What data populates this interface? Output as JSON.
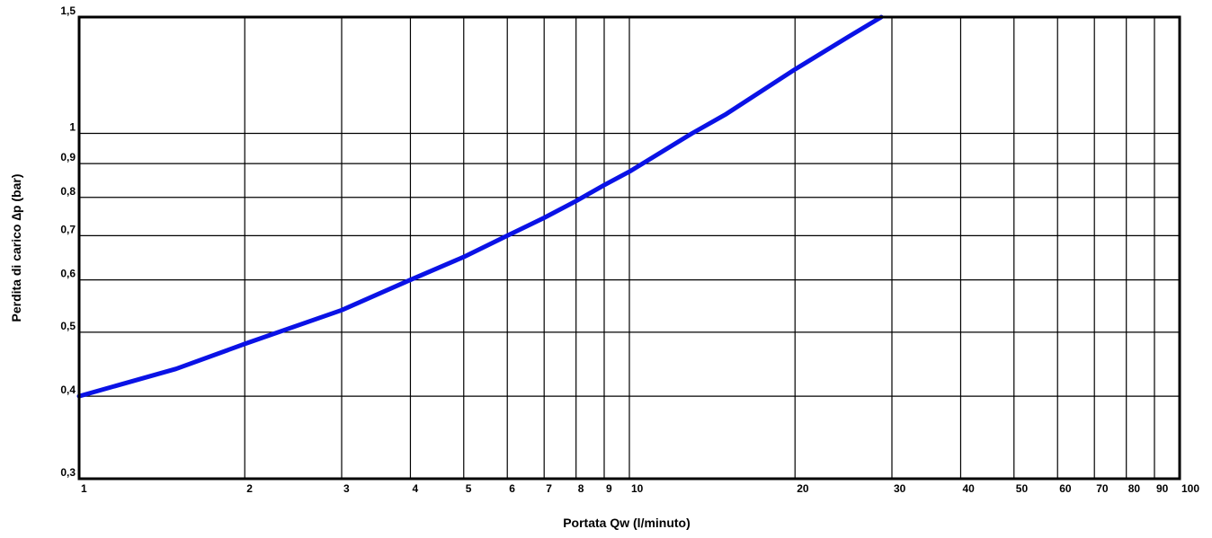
{
  "chart_data": {
    "type": "line",
    "xlabel": "Portata Qw (l/minuto)",
    "ylabel": "Perdita di carico ∆p (bar)",
    "x_scale": "log",
    "y_scale": "log",
    "xlim": [
      1,
      100
    ],
    "ylim": [
      0.3,
      1.5
    ],
    "grid": true,
    "x_ticks": [
      {
        "value": 1,
        "label": "1"
      },
      {
        "value": 2,
        "label": "2"
      },
      {
        "value": 3,
        "label": "3"
      },
      {
        "value": 4,
        "label": "4"
      },
      {
        "value": 5,
        "label": "5"
      },
      {
        "value": 6,
        "label": "6"
      },
      {
        "value": 7,
        "label": "7"
      },
      {
        "value": 8,
        "label": "8"
      },
      {
        "value": 9,
        "label": "9"
      },
      {
        "value": 10,
        "label": "10"
      },
      {
        "value": 20,
        "label": "20"
      },
      {
        "value": 30,
        "label": "30"
      },
      {
        "value": 40,
        "label": "40"
      },
      {
        "value": 50,
        "label": "50"
      },
      {
        "value": 60,
        "label": "60"
      },
      {
        "value": 70,
        "label": "70"
      },
      {
        "value": 80,
        "label": "80"
      },
      {
        "value": 90,
        "label": "90"
      },
      {
        "value": 100,
        "label": "100"
      }
    ],
    "y_ticks": [
      {
        "value": 0.3,
        "label": "0,3"
      },
      {
        "value": 0.4,
        "label": "0,4"
      },
      {
        "value": 0.5,
        "label": "0,5"
      },
      {
        "value": 0.6,
        "label": "0,6"
      },
      {
        "value": 0.7,
        "label": "0,7"
      },
      {
        "value": 0.8,
        "label": "0,8"
      },
      {
        "value": 0.9,
        "label": "0,9"
      },
      {
        "value": 1,
        "label": "1"
      },
      {
        "value": 1.5,
        "label": "1,5"
      }
    ],
    "series": [
      {
        "color": "#0a12e6",
        "points": [
          {
            "x": 1,
            "y": 0.4
          },
          {
            "x": 1.5,
            "y": 0.44
          },
          {
            "x": 2,
            "y": 0.48
          },
          {
            "x": 3,
            "y": 0.54
          },
          {
            "x": 4,
            "y": 0.6
          },
          {
            "x": 5,
            "y": 0.65
          },
          {
            "x": 6,
            "y": 0.7
          },
          {
            "x": 7,
            "y": 0.745
          },
          {
            "x": 8,
            "y": 0.79
          },
          {
            "x": 9,
            "y": 0.835
          },
          {
            "x": 10,
            "y": 0.875
          },
          {
            "x": 13,
            "y": 1.0
          },
          {
            "x": 15,
            "y": 1.07
          },
          {
            "x": 20,
            "y": 1.25
          },
          {
            "x": 25,
            "y": 1.4
          },
          {
            "x": 28.7,
            "y": 1.5
          }
        ]
      }
    ]
  }
}
